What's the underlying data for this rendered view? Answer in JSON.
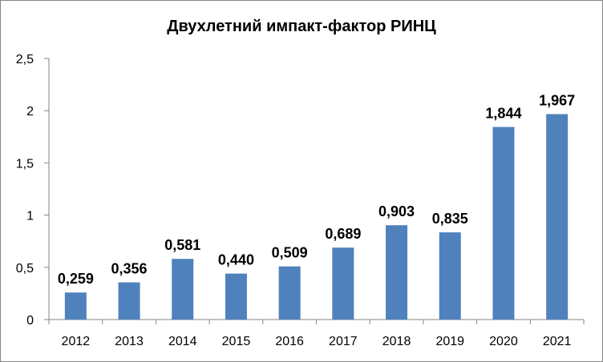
{
  "chart_data": {
    "type": "bar",
    "title": "Двухлетний импакт-фактор РИНЦ",
    "categories": [
      "2012",
      "2013",
      "2014",
      "2015",
      "2016",
      "2017",
      "2018",
      "2019",
      "2020",
      "2021"
    ],
    "values": [
      0.259,
      0.356,
      0.581,
      0.44,
      0.509,
      0.689,
      0.903,
      0.835,
      1.844,
      1.967
    ],
    "data_labels": [
      "0,259",
      "0,356",
      "0,581",
      "0,440",
      "0,509",
      "0,689",
      "0,903",
      "0,835",
      "1,844",
      "1,967"
    ],
    "ylim": [
      0,
      2.5
    ],
    "yticks": [
      0,
      0.5,
      1,
      1.5,
      2,
      2.5
    ],
    "ytick_labels": [
      "0",
      "0,5",
      "1",
      "1,5",
      "2",
      "2,5"
    ],
    "xlabel": "",
    "ylabel": "",
    "grid": false,
    "legend": "none",
    "bar_color": "#4f81bd",
    "axis_color": "#868686"
  }
}
